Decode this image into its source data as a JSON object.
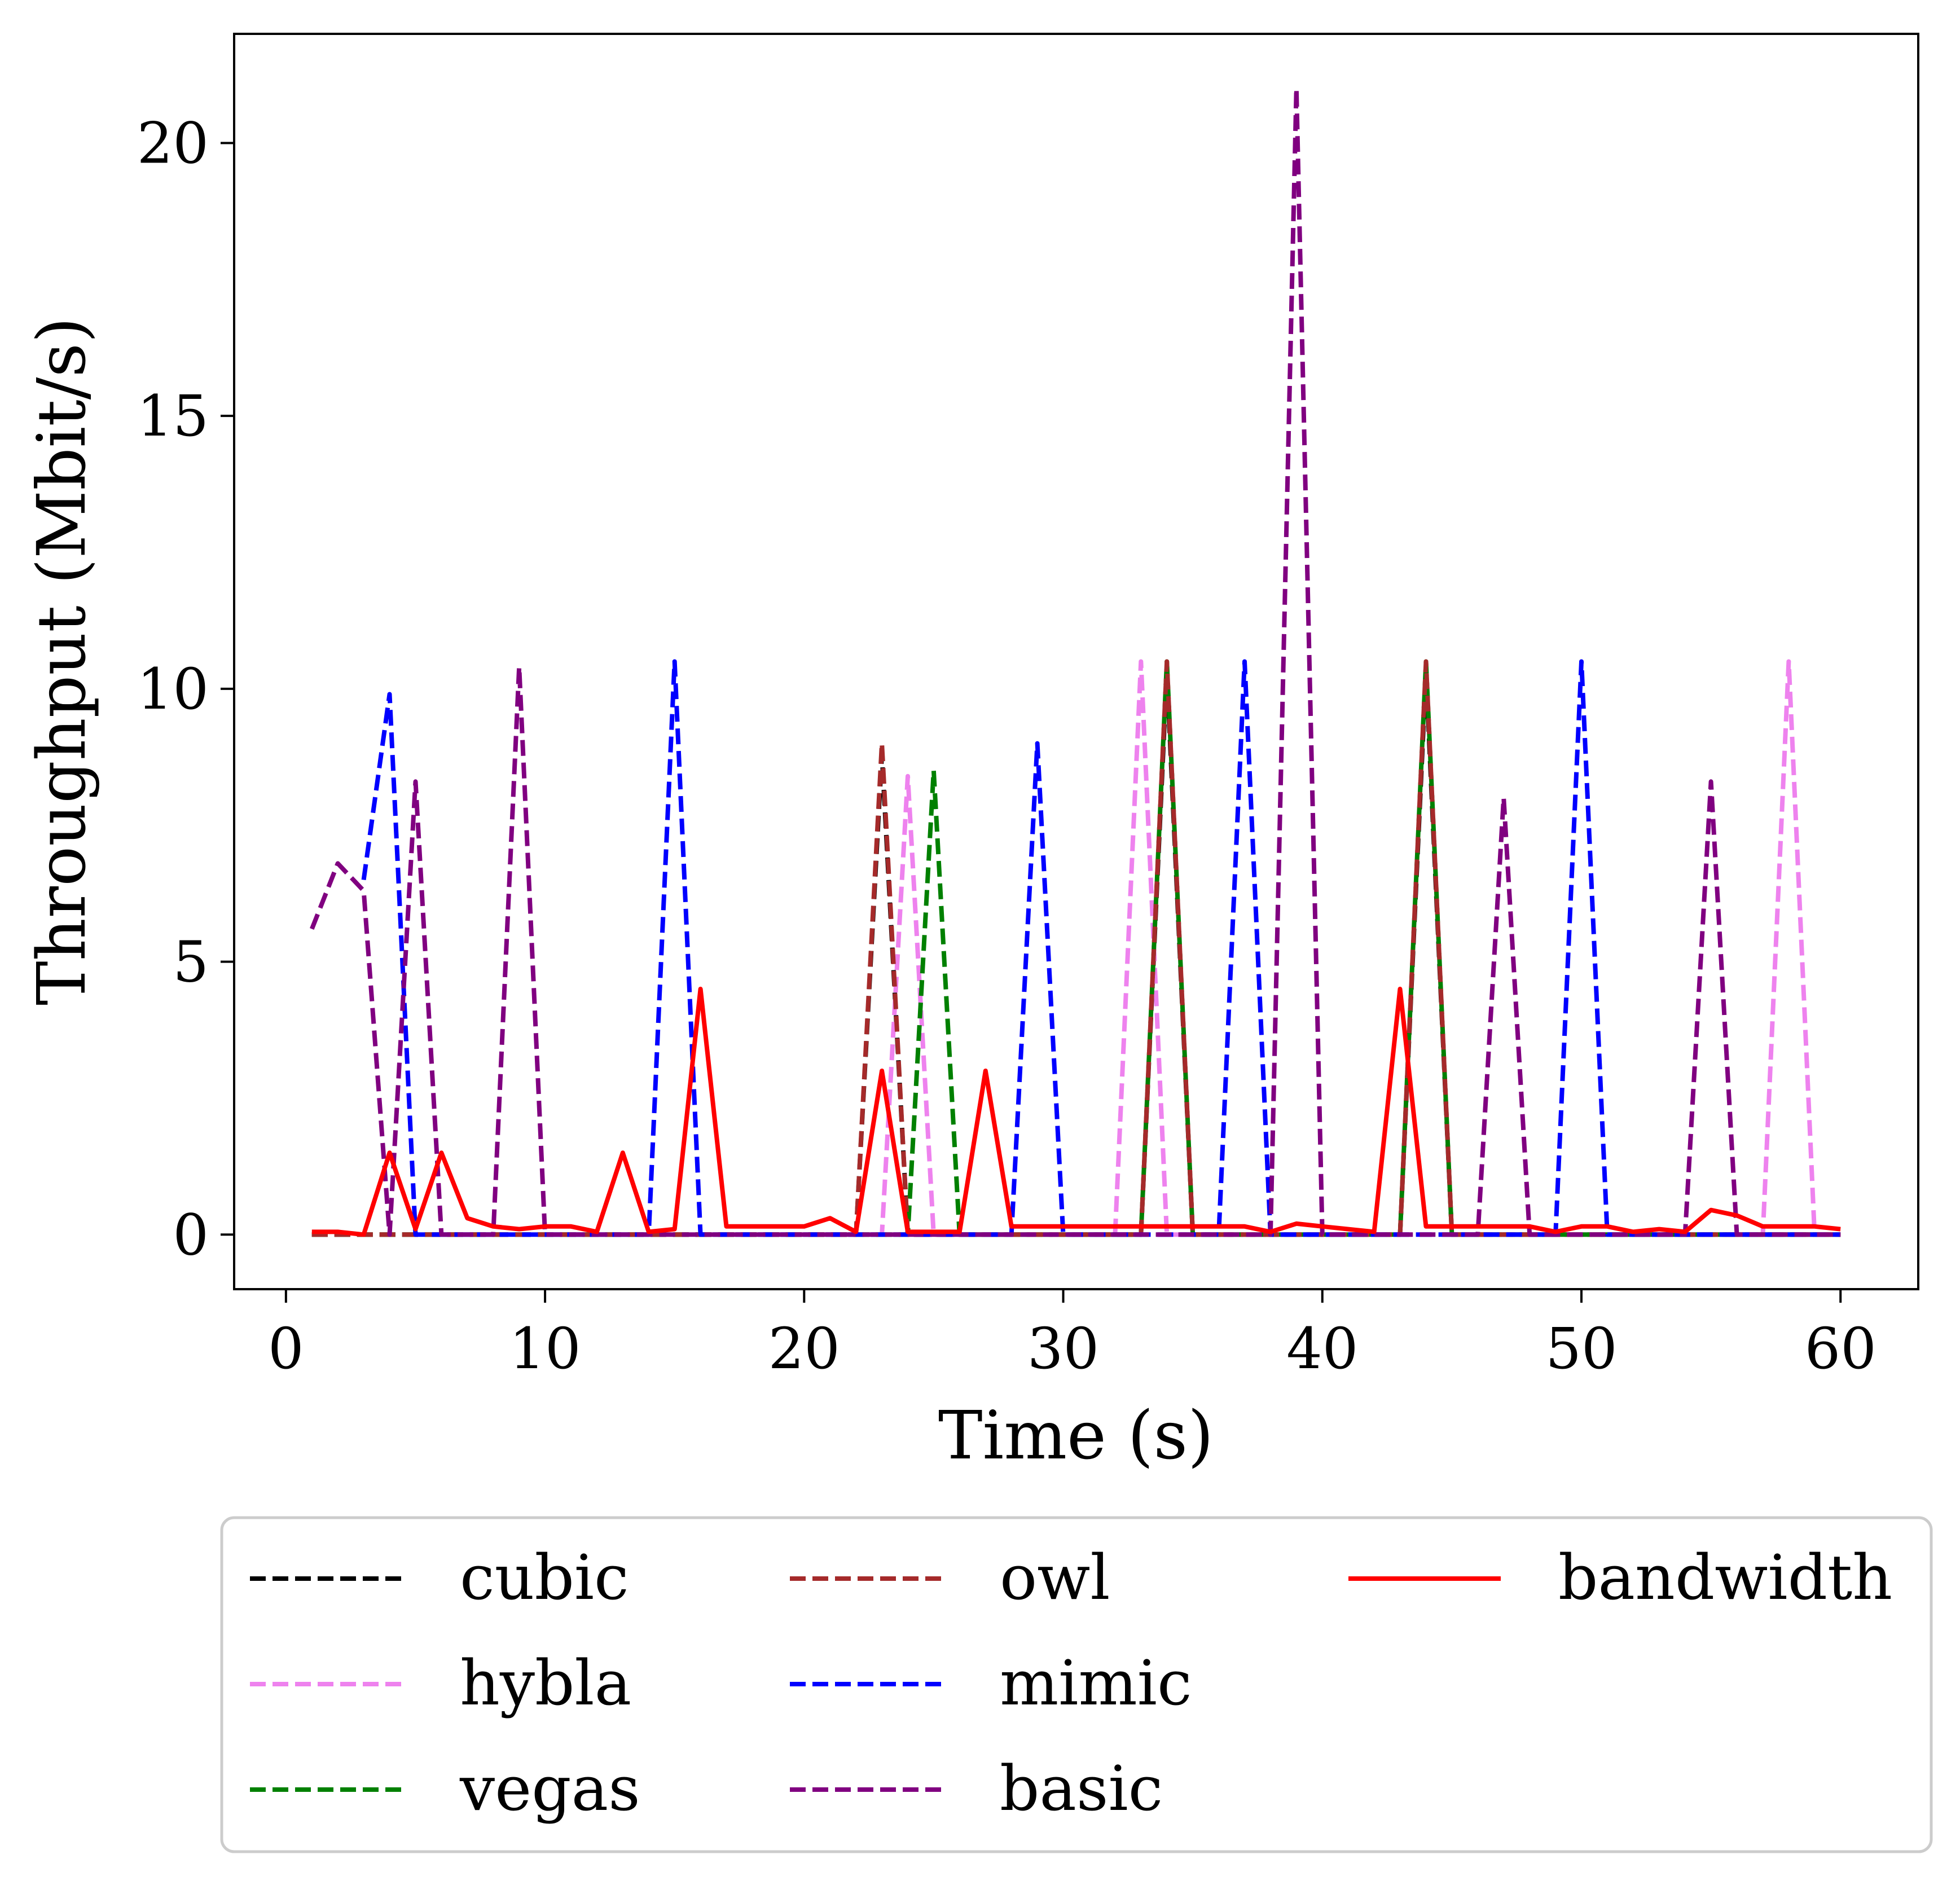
{
  "chart_data": {
    "type": "line",
    "title": "",
    "xlabel": "Time (s)",
    "ylabel": "Throughput (Mbit/s)",
    "xlim": [
      -2,
      63
    ],
    "ylim": [
      -1,
      22
    ],
    "xticks": [
      0,
      10,
      20,
      30,
      40,
      50,
      60
    ],
    "yticks": [
      0,
      5,
      10,
      15,
      20
    ],
    "xtick_labels": [
      "0",
      "10",
      "20",
      "30",
      "40",
      "50",
      "60"
    ],
    "ytick_labels": [
      "0",
      "5",
      "10",
      "15",
      "20"
    ],
    "grid": false,
    "legend_placement": "bottom, below plot, 3 columns",
    "series": [
      {
        "name": "cubic",
        "color": "#000000",
        "dash": "dashed",
        "x": [
          1,
          22,
          23,
          24,
          33,
          34,
          35,
          43,
          44,
          45,
          60
        ],
        "y": [
          0,
          0,
          8.8,
          0,
          0,
          10.3,
          0,
          0,
          10.3,
          0,
          0
        ]
      },
      {
        "name": "hybla",
        "color": "#ee82ee",
        "dash": "dashed",
        "x": [
          1,
          23,
          24,
          25,
          32,
          33,
          34,
          57,
          58,
          59,
          60
        ],
        "y": [
          0,
          0,
          8.4,
          0,
          0,
          10.5,
          0,
          0,
          10.5,
          0,
          0
        ]
      },
      {
        "name": "vegas",
        "color": "#008000",
        "dash": "dashed",
        "x": [
          1,
          24,
          25,
          26,
          33,
          34,
          35,
          43,
          44,
          45,
          60
        ],
        "y": [
          0,
          0,
          8.5,
          0,
          0,
          10.5,
          0,
          0,
          10.5,
          0,
          0
        ]
      },
      {
        "name": "owl",
        "color": "#a52a2a",
        "dash": "dashed",
        "x": [
          1,
          22,
          23,
          24,
          33,
          34,
          35,
          43,
          44,
          45,
          60
        ],
        "y": [
          0,
          0,
          9.0,
          0,
          0,
          10.5,
          0,
          0,
          10.5,
          0,
          0
        ]
      },
      {
        "name": "mimic",
        "color": "#0000ff",
        "dash": "dashed",
        "x": [
          3,
          4,
          5,
          14,
          15,
          16,
          28,
          29,
          30,
          36,
          37,
          38,
          49,
          50,
          51,
          60
        ],
        "y": [
          6.5,
          9.9,
          0,
          0,
          10.5,
          0,
          0,
          9.0,
          0,
          0,
          10.5,
          0,
          0,
          10.5,
          0,
          0
        ]
      },
      {
        "name": "basic",
        "color": "#800080",
        "dash": "dashed",
        "x": [
          1,
          2,
          3,
          4,
          5,
          6,
          8,
          9,
          10,
          38,
          39,
          40,
          46,
          47,
          48,
          54,
          55,
          56,
          60
        ],
        "y": [
          5.6,
          6.8,
          6.3,
          0,
          8.3,
          0,
          0,
          10.4,
          0,
          0,
          21.0,
          0,
          0,
          8.0,
          0,
          0,
          8.3,
          0,
          0
        ]
      },
      {
        "name": "bandwidth",
        "color": "#ff0000",
        "dash": "solid",
        "x": [
          1,
          2,
          3,
          4,
          5,
          6,
          7,
          8,
          9,
          10,
          11,
          12,
          13,
          14,
          15,
          16,
          17,
          18,
          19,
          20,
          21,
          22,
          23,
          24,
          25,
          26,
          27,
          28,
          29,
          30,
          31,
          32,
          33,
          34,
          35,
          36,
          37,
          38,
          39,
          40,
          41,
          42,
          43,
          44,
          45,
          46,
          47,
          48,
          49,
          50,
          51,
          52,
          53,
          54,
          55,
          56,
          57,
          58,
          59,
          60
        ],
        "y": [
          0.05,
          0.05,
          0.0,
          1.5,
          0.1,
          1.5,
          0.3,
          0.15,
          0.1,
          0.15,
          0.15,
          0.05,
          1.5,
          0.05,
          0.1,
          4.5,
          0.15,
          0.15,
          0.15,
          0.15,
          0.3,
          0.05,
          3.0,
          0.05,
          0.05,
          0.05,
          3.0,
          0.15,
          0.15,
          0.15,
          0.15,
          0.15,
          0.15,
          0.15,
          0.15,
          0.15,
          0.15,
          0.05,
          0.2,
          0.15,
          0.1,
          0.05,
          4.5,
          0.15,
          0.15,
          0.15,
          0.15,
          0.15,
          0.05,
          0.15,
          0.15,
          0.05,
          0.1,
          0.05,
          0.45,
          0.35,
          0.15,
          0.15,
          0.15,
          0.1
        ]
      }
    ]
  }
}
